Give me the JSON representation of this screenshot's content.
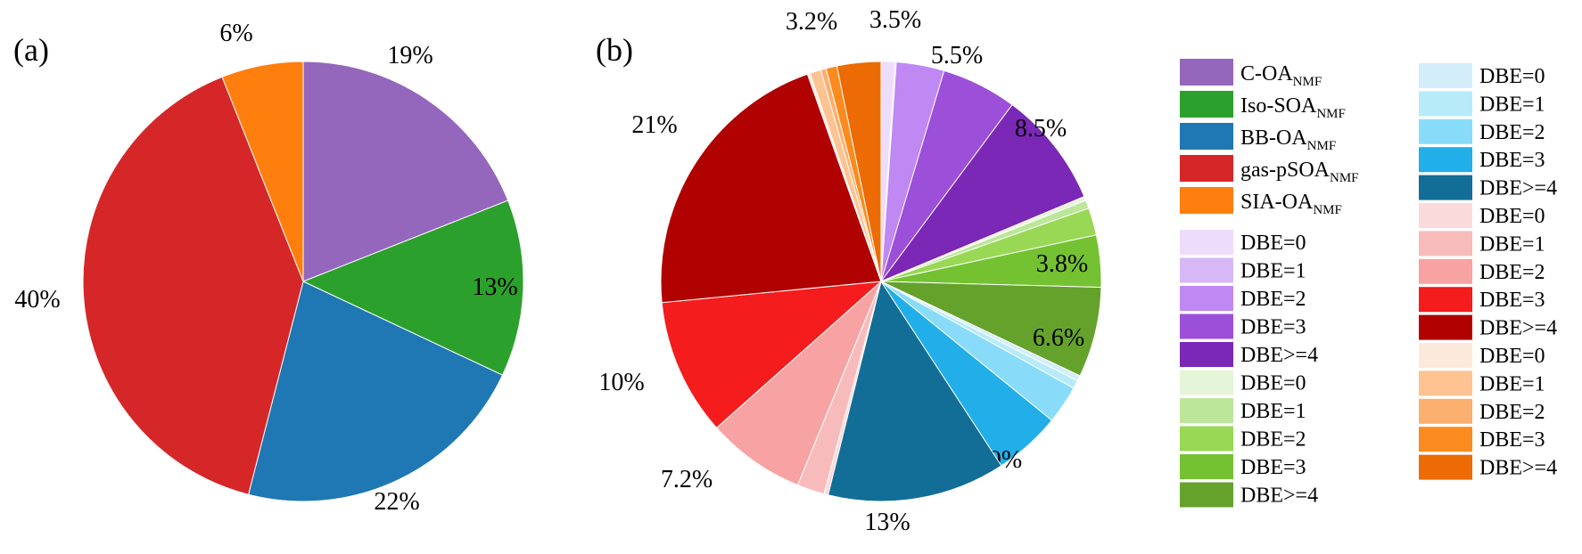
{
  "chart_data": [
    {
      "type": "pie",
      "panel_label": "(a)",
      "slices": [
        {
          "name": "C-OA",
          "name_sub": "NMF",
          "value": 19,
          "color": "#9467bd",
          "label": "19%"
        },
        {
          "name": "Iso-SOA",
          "name_sub": "NMF",
          "value": 13,
          "color": "#2ca02c",
          "label": "13%"
        },
        {
          "name": "BB-OA",
          "name_sub": "NMF",
          "value": 22,
          "color": "#1f77b4",
          "label": "22%"
        },
        {
          "name": "gas-pSOA",
          "name_sub": "NMF",
          "value": 40,
          "color": "#d62728",
          "label": "40%"
        },
        {
          "name": "SIA-OA",
          "name_sub": "NMF",
          "value": 6,
          "color": "#ff7f0e",
          "label": "6%"
        }
      ]
    },
    {
      "type": "pie",
      "panel_label": "(b)",
      "slices": [
        {
          "group": "C-OA",
          "name": "DBE=0",
          "value": 1.0,
          "color": "#eedcfb",
          "label": ""
        },
        {
          "group": "C-OA",
          "name": "DBE=1",
          "value": 0.1,
          "color": "#d7b8f7",
          "label": ""
        },
        {
          "group": "C-OA",
          "name": "DBE=2",
          "value": 3.5,
          "color": "#bf88f2",
          "label": "3.5%"
        },
        {
          "group": "C-OA",
          "name": "DBE=3",
          "value": 5.5,
          "color": "#9c4fd8",
          "label": "5.5%"
        },
        {
          "group": "C-OA",
          "name": "DBE>=4",
          "value": 8.5,
          "color": "#7a28b5",
          "label": "8.5%"
        },
        {
          "group": "Iso-SOA",
          "name": "DBE=0",
          "value": 0.3,
          "color": "#e5f5d8",
          "label": ""
        },
        {
          "group": "Iso-SOA",
          "name": "DBE=1",
          "value": 0.6,
          "color": "#bce69a",
          "label": ""
        },
        {
          "group": "Iso-SOA",
          "name": "DBE=2",
          "value": 2.0,
          "color": "#98d855",
          "label": ""
        },
        {
          "group": "Iso-SOA",
          "name": "DBE=3",
          "value": 3.8,
          "color": "#74c232",
          "label": "3.8%"
        },
        {
          "group": "Iso-SOA",
          "name": "DBE>=4",
          "value": 6.6,
          "color": "#64a22c",
          "label": "6.6%"
        },
        {
          "group": "BB-OA",
          "name": "DBE=0",
          "value": 0.4,
          "color": "#d4edfb",
          "label": ""
        },
        {
          "group": "BB-OA",
          "name": "DBE=1",
          "value": 0.6,
          "color": "#b7ebfa",
          "label": ""
        },
        {
          "group": "BB-OA",
          "name": "DBE=2",
          "value": 2.8,
          "color": "#88dcfa",
          "label": ""
        },
        {
          "group": "BB-OA",
          "name": "DBE=3",
          "value": 4.9,
          "color": "#22aee8",
          "label": "4.9%"
        },
        {
          "group": "BB-OA",
          "name": "DBE>=4",
          "value": 13,
          "color": "#126e97",
          "label": "13%"
        },
        {
          "group": "gas-pSOA",
          "name": "DBE=0",
          "value": 0.3,
          "color": "#fbdadb",
          "label": ""
        },
        {
          "group": "gas-pSOA",
          "name": "DBE=1",
          "value": 2.0,
          "color": "#f8bbbb",
          "label": ""
        },
        {
          "group": "gas-pSOA",
          "name": "DBE=2",
          "value": 7.2,
          "color": "#f7a3a3",
          "label": "7.2%"
        },
        {
          "group": "gas-pSOA",
          "name": "DBE=3",
          "value": 10,
          "color": "#f41c1c",
          "label": "10%"
        },
        {
          "group": "gas-pSOA",
          "name": "DBE>=4",
          "value": 21,
          "color": "#b10202",
          "label": "21%"
        },
        {
          "group": "SIA-OA",
          "name": "DBE=0",
          "value": 0.2,
          "color": "#fde9dc",
          "label": ""
        },
        {
          "group": "SIA-OA",
          "name": "DBE=1",
          "value": 0.8,
          "color": "#fdc393",
          "label": ""
        },
        {
          "group": "SIA-OA",
          "name": "DBE=2",
          "value": 0.4,
          "color": "#fbb06f",
          "label": ""
        },
        {
          "group": "SIA-OA",
          "name": "DBE=3",
          "value": 0.8,
          "color": "#fb8b1e",
          "label": ""
        },
        {
          "group": "SIA-OA",
          "name": "DBE>=4",
          "value": 3.2,
          "color": "#ec6b04",
          "label": "3.2%"
        }
      ]
    }
  ],
  "legend": {
    "groups": [
      {
        "name": "C-OA",
        "sub": "NMF",
        "color": "#9467bd"
      },
      {
        "name": "Iso-SOA",
        "sub": "NMF",
        "color": "#2ca02c"
      },
      {
        "name": "BB-OA",
        "sub": "NMF",
        "color": "#1f77b4"
      },
      {
        "name": "gas-pSOA",
        "sub": "NMF",
        "color": "#d62728"
      },
      {
        "name": "SIA-OA",
        "sub": "NMF",
        "color": "#ff7f0e"
      }
    ]
  }
}
